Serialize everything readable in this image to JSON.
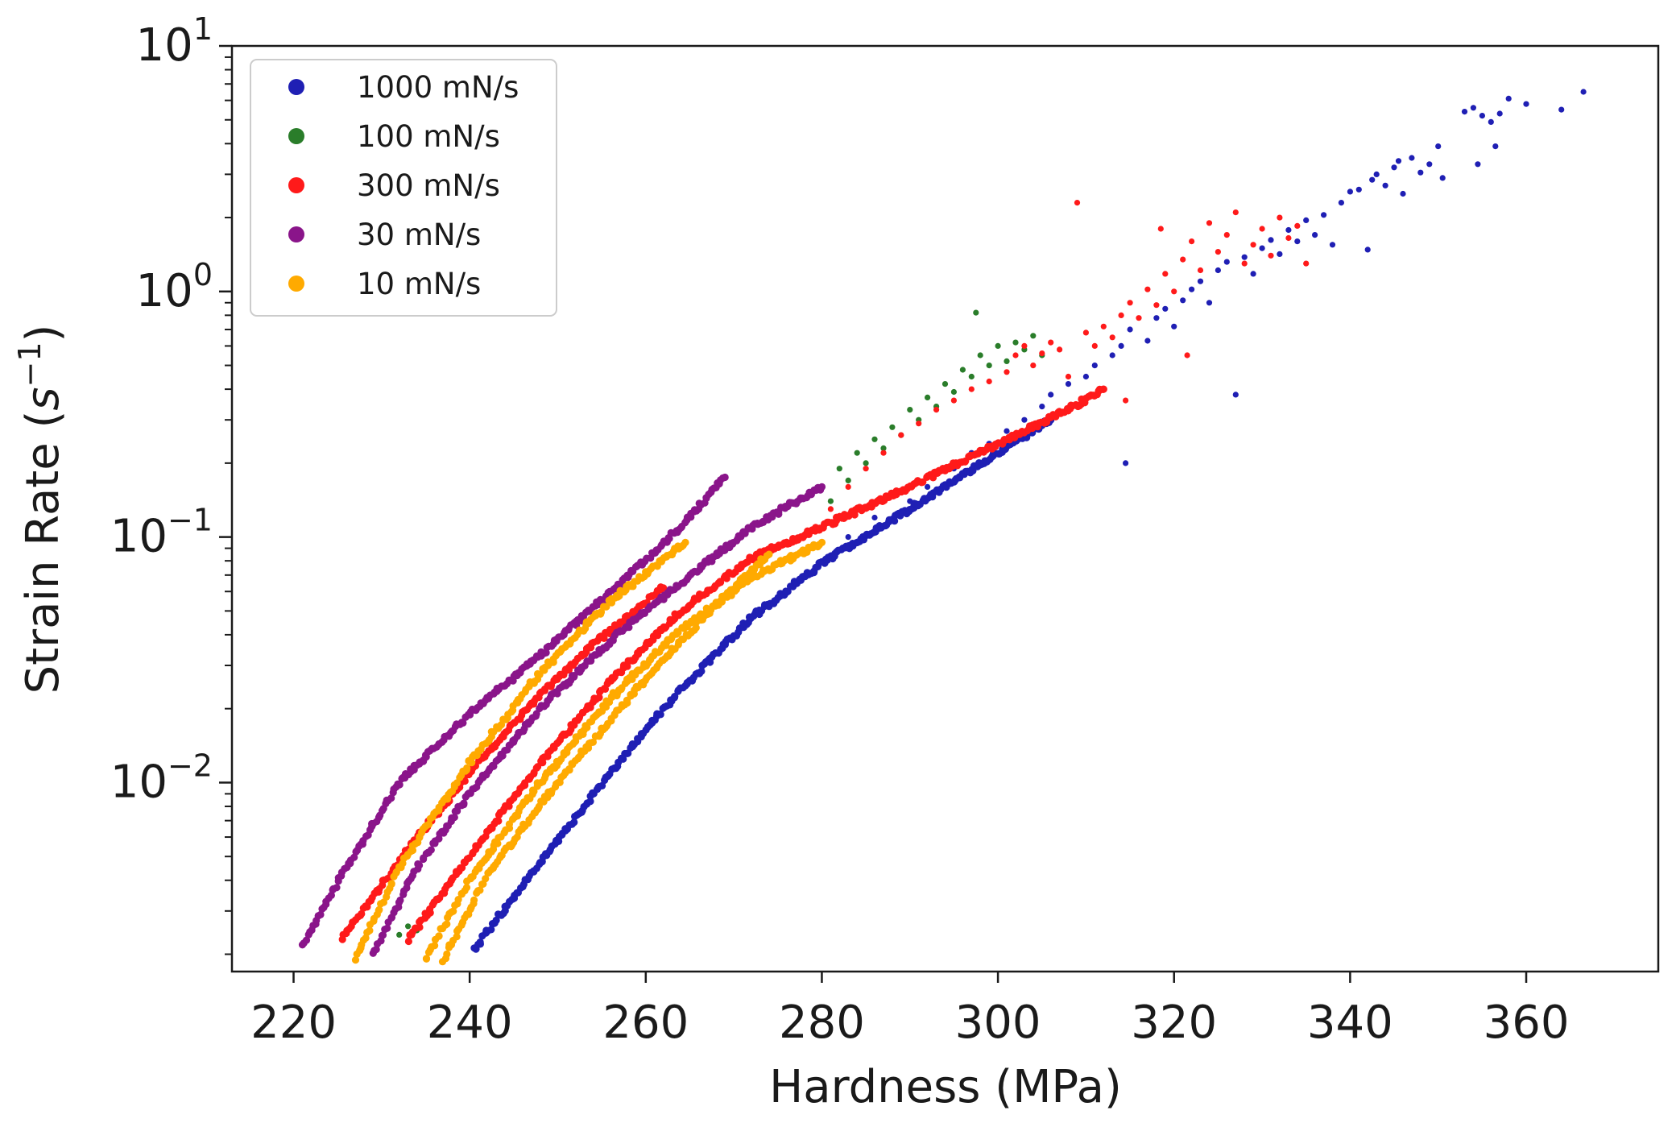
{
  "chart_data": {
    "type": "scatter",
    "title": "",
    "xlabel": "Hardness (MPa)",
    "ylabel": "Strain Rate",
    "ylabel_unit": "s",
    "ylabel_exp": "−1",
    "x_scale": "linear",
    "y_scale": "log",
    "xlim": [
      213,
      375
    ],
    "ylim": [
      0.0017,
      10
    ],
    "x_ticks": [
      220,
      240,
      260,
      280,
      300,
      320,
      340,
      360
    ],
    "y_ticks": [
      {
        "value": 10,
        "base": "10",
        "exp": "1"
      },
      {
        "value": 1,
        "base": "10",
        "exp": "0"
      },
      {
        "value": 0.1,
        "base": "10",
        "exp": "−1"
      },
      {
        "value": 0.01,
        "base": "10",
        "exp": "−2"
      }
    ],
    "legend_position": "top-left",
    "series": [
      {
        "name": "1000 mN/s",
        "color": "#1f1fb4",
        "curves": [
          [
            [
              240.5,
              0.0021
            ],
            [
              248,
              0.0047
            ],
            [
              256,
              0.011
            ],
            [
              264,
              0.024
            ],
            [
              272,
              0.047
            ],
            [
              280,
              0.078
            ],
            [
              290,
              0.13
            ],
            [
              300,
              0.22
            ],
            [
              306,
              0.3
            ]
          ]
        ],
        "scatter": [
          [
            283,
            0.1
          ],
          [
            286,
            0.12
          ],
          [
            290,
            0.14
          ],
          [
            292,
            0.16
          ],
          [
            295,
            0.19
          ],
          [
            297,
            0.22
          ],
          [
            299,
            0.24
          ],
          [
            301,
            0.27
          ],
          [
            303,
            0.3
          ],
          [
            305,
            0.34
          ],
          [
            306,
            0.38
          ],
          [
            308,
            0.42
          ],
          [
            310,
            0.45
          ],
          [
            311,
            0.5
          ],
          [
            312,
            0.4
          ],
          [
            313,
            0.55
          ],
          [
            314,
            0.6
          ],
          [
            314.5,
            0.2
          ],
          [
            315,
            0.7
          ],
          [
            317,
            0.63
          ],
          [
            318,
            0.78
          ],
          [
            319,
            0.85
          ],
          [
            320,
            0.72
          ],
          [
            321,
            0.92
          ],
          [
            322,
            1.02
          ],
          [
            323,
            1.1
          ],
          [
            324,
            0.9
          ],
          [
            325,
            1.22
          ],
          [
            326,
            1.32
          ],
          [
            327,
            0.38
          ],
          [
            328,
            1.38
          ],
          [
            329,
            1.18
          ],
          [
            330,
            1.5
          ],
          [
            331,
            1.62
          ],
          [
            332,
            1.42
          ],
          [
            333,
            1.78
          ],
          [
            334,
            1.6
          ],
          [
            335,
            1.95
          ],
          [
            336,
            1.7
          ],
          [
            337,
            2.05
          ],
          [
            338,
            1.55
          ],
          [
            339,
            2.3
          ],
          [
            340,
            2.55
          ],
          [
            341,
            2.6
          ],
          [
            342,
            1.48
          ],
          [
            342.5,
            2.85
          ],
          [
            343,
            3.0
          ],
          [
            344,
            2.7
          ],
          [
            345,
            3.2
          ],
          [
            345.5,
            3.4
          ],
          [
            346,
            2.5
          ],
          [
            347,
            3.5
          ],
          [
            348,
            3.05
          ],
          [
            349,
            3.3
          ],
          [
            350,
            3.9
          ],
          [
            350.5,
            2.9
          ],
          [
            353,
            5.4
          ],
          [
            354,
            5.6
          ],
          [
            354.5,
            3.3
          ],
          [
            355,
            5.2
          ],
          [
            356,
            4.9
          ],
          [
            356.5,
            3.9
          ],
          [
            357,
            5.3
          ],
          [
            358,
            6.1
          ],
          [
            360,
            5.8
          ],
          [
            364,
            5.5
          ],
          [
            366.5,
            6.5
          ]
        ]
      },
      {
        "name": "100 mN/s",
        "color": "#2a7d2a",
        "curves": [],
        "scatter": [
          [
            232,
            0.0024
          ],
          [
            233,
            0.0026
          ],
          [
            234,
            0.0025
          ],
          [
            280,
            0.16
          ],
          [
            281,
            0.14
          ],
          [
            282,
            0.19
          ],
          [
            283,
            0.17
          ],
          [
            284,
            0.22
          ],
          [
            285,
            0.2
          ],
          [
            286,
            0.25
          ],
          [
            287,
            0.23
          ],
          [
            288,
            0.28
          ],
          [
            289,
            0.26
          ],
          [
            290,
            0.33
          ],
          [
            291,
            0.3
          ],
          [
            292,
            0.37
          ],
          [
            293,
            0.34
          ],
          [
            294,
            0.42
          ],
          [
            295,
            0.39
          ],
          [
            296,
            0.48
          ],
          [
            297,
            0.45
          ],
          [
            297.5,
            0.82
          ],
          [
            298,
            0.55
          ],
          [
            299,
            0.5
          ],
          [
            300,
            0.6
          ],
          [
            301,
            0.52
          ],
          [
            302,
            0.62
          ],
          [
            303,
            0.58
          ],
          [
            304,
            0.66
          ],
          [
            305,
            0.55
          ]
        ]
      },
      {
        "name": "300 mN/s",
        "color": "#ff1a1a",
        "curves": [
          [
            [
              225.5,
              0.0023
            ],
            [
              232,
              0.0048
            ],
            [
              240,
              0.011
            ],
            [
              248,
              0.023
            ],
            [
              256,
              0.042
            ],
            [
              262,
              0.062
            ]
          ],
          [
            [
              233,
              0.0023
            ],
            [
              240,
              0.005
            ],
            [
              248,
              0.012
            ],
            [
              256,
              0.026
            ],
            [
              264,
              0.05
            ],
            [
              272,
              0.082
            ],
            [
              280,
              0.11
            ],
            [
              290,
              0.16
            ],
            [
              300,
              0.24
            ],
            [
              308,
              0.33
            ],
            [
              312,
              0.4
            ]
          ]
        ],
        "scatter": [
          [
            281,
            0.13
          ],
          [
            283,
            0.16
          ],
          [
            285,
            0.19
          ],
          [
            287,
            0.22
          ],
          [
            289,
            0.26
          ],
          [
            291,
            0.29
          ],
          [
            293,
            0.33
          ],
          [
            295,
            0.36
          ],
          [
            297,
            0.4
          ],
          [
            299,
            0.43
          ],
          [
            301,
            0.47
          ],
          [
            302,
            0.55
          ],
          [
            303,
            0.6
          ],
          [
            304,
            0.5
          ],
          [
            305,
            0.56
          ],
          [
            306,
            0.62
          ],
          [
            307,
            0.58
          ],
          [
            308,
            0.45
          ],
          [
            309,
            2.3
          ],
          [
            310,
            0.68
          ],
          [
            311,
            0.6
          ],
          [
            312,
            0.72
          ],
          [
            313,
            0.65
          ],
          [
            314,
            0.8
          ],
          [
            314.5,
            0.36
          ],
          [
            315,
            0.9
          ],
          [
            316,
            0.78
          ],
          [
            317,
            1.02
          ],
          [
            318,
            0.88
          ],
          [
            318.5,
            1.8
          ],
          [
            319,
            1.18
          ],
          [
            320,
            1.0
          ],
          [
            321,
            1.35
          ],
          [
            321.5,
            0.55
          ],
          [
            322,
            1.6
          ],
          [
            323,
            1.22
          ],
          [
            324,
            1.9
          ],
          [
            325,
            1.45
          ],
          [
            326,
            1.7
          ],
          [
            327,
            2.1
          ],
          [
            328,
            1.3
          ],
          [
            329,
            1.55
          ],
          [
            330,
            1.8
          ],
          [
            331,
            1.4
          ],
          [
            332,
            2.0
          ],
          [
            333,
            1.65
          ],
          [
            334,
            1.85
          ],
          [
            335,
            1.3
          ]
        ]
      },
      {
        "name": "30 mN/s",
        "color": "#8a158a",
        "curves": [
          [
            [
              221,
              0.0022
            ],
            [
              226,
              0.0045
            ],
            [
              232,
              0.01
            ],
            [
              240,
              0.019
            ],
            [
              248,
              0.033
            ],
            [
              256,
              0.06
            ],
            [
              264,
              0.11
            ],
            [
              269,
              0.175
            ]
          ],
          [
            [
              229,
              0.002
            ],
            [
              234,
              0.0045
            ],
            [
              240,
              0.009
            ],
            [
              248,
              0.02
            ],
            [
              256,
              0.038
            ],
            [
              264,
              0.065
            ],
            [
              272,
              0.11
            ],
            [
              280,
              0.16
            ]
          ]
        ],
        "scatter": []
      },
      {
        "name": "10 mN/s",
        "color": "#ffaa00",
        "curves": [
          [
            [
              227,
              0.0019
            ],
            [
              232,
              0.0045
            ],
            [
              240,
              0.012
            ],
            [
              248,
              0.028
            ],
            [
              256,
              0.055
            ],
            [
              264.5,
              0.095
            ]
          ],
          [
            [
              235,
              0.0019
            ],
            [
              240,
              0.004
            ],
            [
              248,
              0.01
            ],
            [
              256,
              0.022
            ],
            [
              264,
              0.042
            ],
            [
              272,
              0.068
            ],
            [
              280,
              0.095
            ]
          ],
          [
            [
              237,
              0.0019
            ],
            [
              242,
              0.0042
            ],
            [
              250,
              0.01
            ],
            [
              258,
              0.022
            ],
            [
              266,
              0.045
            ],
            [
              274,
              0.085
            ]
          ]
        ],
        "scatter": []
      }
    ]
  }
}
